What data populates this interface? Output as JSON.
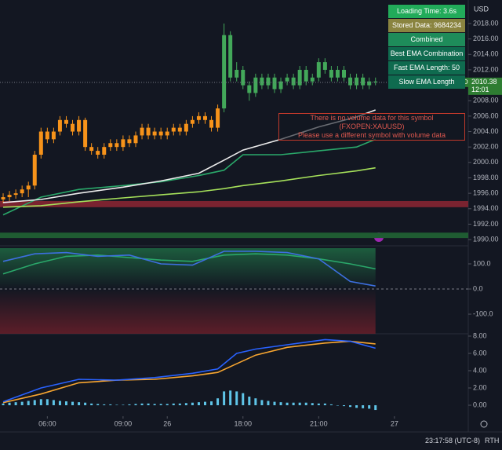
{
  "chart_data": [
    {
      "type": "candlestick",
      "currency": "USD",
      "symbol": "XAUUSD",
      "last_price": 2010.38,
      "countdown": "12:01",
      "xlim": [
        -0.5,
        73.7
      ],
      "ylim": [
        1989.5,
        2021.05
      ],
      "yticks": [
        {
          "value": 2018,
          "label": "2018.00"
        },
        {
          "value": 2016,
          "label": "2016.00"
        },
        {
          "value": 2014,
          "label": "2014.00"
        },
        {
          "value": 2012,
          "label": "2012.00"
        },
        {
          "value": 2010,
          "label": "2010.00"
        },
        {
          "value": 2008,
          "label": "2008.00"
        },
        {
          "value": 2006,
          "label": "2006.00"
        },
        {
          "value": 2004,
          "label": "2004.00"
        },
        {
          "value": 2002,
          "label": "2002.00"
        },
        {
          "value": 2000,
          "label": "2000.00"
        },
        {
          "value": 1998,
          "label": "1998.00"
        },
        {
          "value": 1996,
          "label": "1996.00"
        },
        {
          "value": 1994,
          "label": "1994.00"
        },
        {
          "value": 1992,
          "label": "1992.00"
        },
        {
          "value": 1990,
          "label": "1990.00"
        }
      ],
      "zones": [
        {
          "from": 1994.2,
          "to": 1995,
          "color": "#7a2330"
        },
        {
          "from": 1990.2,
          "to": 1990.9,
          "color": "#1f5c32"
        }
      ],
      "series": [
        {
          "type": "candlestick",
          "color": "#f7931a",
          "x": [
            0,
            1,
            2,
            3,
            4,
            5,
            6,
            7,
            8,
            9,
            10,
            11,
            12,
            13,
            14,
            15,
            16,
            17,
            18,
            19,
            20,
            21,
            22,
            23,
            24,
            25,
            26,
            27,
            28,
            29,
            30,
            31,
            32,
            33,
            34
          ],
          "open": [
            1995.2,
            1995.5,
            1995.8,
            1996,
            1996.5,
            1997,
            2001,
            2004,
            2003,
            2004,
            2005.5,
            2005,
            2004,
            2005.5,
            2002,
            2001.5,
            2001,
            2002,
            2002.5,
            2002,
            2003,
            2002.5,
            2003.5,
            2004.5,
            2003.5,
            2004,
            2003.5,
            2004,
            2004.5,
            2004,
            2005,
            2005.5,
            2006,
            2005.5,
            2004.5
          ],
          "high": [
            1996,
            1996.3,
            1996.5,
            1997,
            1997.5,
            2001.5,
            2004.5,
            2004.5,
            2004.5,
            2006,
            2006,
            2005.5,
            2006,
            2005.8,
            2002.5,
            2002,
            2002.5,
            2003,
            2003,
            2003.5,
            2003.5,
            2004,
            2005,
            2005,
            2004.5,
            2004.5,
            2004.5,
            2005,
            2005,
            2005.5,
            2006,
            2006.5,
            2006.5,
            2006,
            2007.5
          ],
          "low": [
            1994.7,
            1995,
            1995.3,
            1995.5,
            1995.5,
            1996.5,
            2000.5,
            2002.5,
            2002.5,
            2003.5,
            2004.5,
            2003.5,
            2003.5,
            2001.5,
            2001,
            2000.5,
            2000.5,
            2001.5,
            2001.5,
            2001.5,
            2002,
            2002,
            2003,
            2003,
            2003,
            2003,
            2003,
            2003.5,
            2003.5,
            2003.5,
            2004.5,
            2005,
            2005,
            2004,
            2004
          ],
          "close": [
            1995.5,
            1995.8,
            1996,
            1996.5,
            1997,
            2001,
            2004,
            2003,
            2004,
            2005.5,
            2005,
            2004,
            2005.5,
            2002,
            2001.5,
            2001,
            2002,
            2002.5,
            2002,
            2003,
            2002.5,
            2003.5,
            2004.5,
            2003.5,
            2004,
            2003.5,
            2004,
            2004.5,
            2004,
            2005,
            2005.5,
            2006,
            2005.5,
            2004.5,
            2007
          ]
        },
        {
          "type": "candlestick",
          "color": "#43a85a",
          "x": [
            35,
            36,
            37,
            38,
            39,
            40,
            41,
            42,
            43,
            44,
            45,
            46,
            47,
            48,
            49,
            50,
            51,
            52,
            53,
            54,
            55,
            56,
            57,
            58,
            59
          ],
          "open": [
            2007,
            2016.5,
            2011,
            2012,
            2010,
            2009,
            2011,
            2010,
            2011,
            2009.5,
            2010.5,
            2011,
            2010,
            2012,
            2010.5,
            2011,
            2013,
            2012,
            2011,
            2012,
            2011,
            2010,
            2011,
            2010,
            2010.5
          ],
          "high": [
            2018,
            2017,
            2013,
            2012.5,
            2010.5,
            2011.5,
            2011.5,
            2011.5,
            2011.5,
            2011,
            2011.5,
            2011.5,
            2012.5,
            2012.5,
            2011.5,
            2013.5,
            2013.5,
            2012.5,
            2012.5,
            2012.5,
            2011.5,
            2011.5,
            2011.5,
            2011,
            2011
          ],
          "low": [
            2006.5,
            2010.5,
            2010.5,
            2009.5,
            2008,
            2008.5,
            2009.5,
            2009.5,
            2009,
            2009,
            2010,
            2009.5,
            2009.5,
            2010,
            2010,
            2010.5,
            2011.5,
            2010.5,
            2010.5,
            2010.5,
            2009.5,
            2009.5,
            2009.5,
            2009.5,
            2010
          ],
          "close": [
            2016.5,
            2011,
            2012,
            2010,
            2009,
            2011,
            2010,
            2011,
            2009.5,
            2010.5,
            2011,
            2010,
            2012,
            2010.5,
            2011,
            2013,
            2012,
            2011,
            2012,
            2011,
            2010,
            2011,
            2010,
            2010.5,
            2010.4
          ]
        },
        {
          "type": "line",
          "color": "#2aa86a",
          "x": [
            0,
            6,
            12,
            19,
            25,
            31,
            35,
            38,
            44,
            50,
            56,
            59
          ],
          "values": [
            1993.2,
            1995.5,
            1996.5,
            1997,
            1997.5,
            1998.3,
            1999,
            2001,
            2001,
            2001.5,
            2002,
            2003
          ]
        },
        {
          "type": "line",
          "color": "#a5e05a",
          "x": [
            0,
            6,
            12,
            19,
            25,
            31,
            35,
            38,
            44,
            50,
            56,
            59
          ],
          "values": [
            1994.2,
            1994.4,
            1994.9,
            1995.4,
            1995.8,
            1996.2,
            1996.6,
            1997,
            1997.6,
            1998.3,
            1998.9,
            1999.3
          ]
        },
        {
          "type": "line",
          "color": "#ececec",
          "x": [
            0,
            6,
            12,
            19,
            25,
            31,
            35,
            38,
            44,
            50,
            56,
            59
          ],
          "values": [
            1994.8,
            1995.2,
            1996,
            1996.8,
            1997.6,
            1998.6,
            2000.3,
            2001.6,
            2003,
            2004.6,
            2005.9,
            2006.8
          ]
        }
      ]
    },
    {
      "type": "line",
      "xlim": [
        -0.5,
        73.7
      ],
      "ylim": [
        -178,
        162.5
      ],
      "yticks": [
        {
          "value": 100,
          "label": "100.0"
        },
        {
          "value": 0,
          "label": "0.0"
        },
        {
          "value": -100,
          "label": "-100.0"
        }
      ],
      "series": [
        {
          "type": "line",
          "color": "#2aa86a",
          "x": [
            0,
            5,
            10,
            15,
            20,
            25,
            30,
            35,
            40,
            45,
            50,
            55,
            59
          ],
          "values": [
            60,
            100,
            130,
            135,
            125,
            115,
            110,
            135,
            140,
            135,
            120,
            100,
            80
          ]
        },
        {
          "type": "line",
          "color": "#3d6fe0",
          "x": [
            0,
            5,
            10,
            15,
            20,
            25,
            30,
            35,
            40,
            45,
            50,
            55,
            59
          ],
          "values": [
            110,
            140,
            145,
            130,
            135,
            100,
            95,
            150,
            150,
            145,
            120,
            30,
            12
          ]
        }
      ]
    },
    {
      "type": "line",
      "xlim": [
        -0.5,
        73.7
      ],
      "ylim": [
        -1.09,
        8.18
      ],
      "yticks": [
        {
          "value": 8,
          "label": "8.00"
        },
        {
          "value": 6,
          "label": "6.00"
        },
        {
          "value": 4,
          "label": "4.00"
        },
        {
          "value": 2,
          "label": "2.00"
        },
        {
          "value": 0,
          "label": "0.00"
        }
      ],
      "xticks": [
        {
          "value": 7,
          "label": "06:00"
        },
        {
          "value": 19,
          "label": "09:00"
        },
        26,
        {
          "value": 38,
          "label": "18:00"
        },
        {
          "value": 50,
          "label": "21:00"
        },
        {
          "value": 62,
          "label": "27"
        }
      ],
      "series": [
        {
          "type": "bar",
          "color": "#5fc5e8",
          "values": [
            0.2,
            0.3,
            0.35,
            0.4,
            0.5,
            0.6,
            0.7,
            0.7,
            0.6,
            0.5,
            0.45,
            0.4,
            0.35,
            0.3,
            0.2,
            0.15,
            0.1,
            0.1,
            0.05,
            0.05,
            0.1,
            0.15,
            0.2,
            0.2,
            0.15,
            0.15,
            0.15,
            0.2,
            0.2,
            0.25,
            0.3,
            0.35,
            0.4,
            0.45,
            0.8,
            1.6,
            1.7,
            1.6,
            1.4,
            1.0,
            0.8,
            0.6,
            0.5,
            0.4,
            0.35,
            0.3,
            0.3,
            0.3,
            0.3,
            0.25,
            0.2,
            0.2,
            0.1,
            0,
            -0.1,
            -0.2,
            -0.3,
            -0.35,
            -0.4,
            -0.55
          ]
        },
        {
          "type": "line",
          "color": "#f7a530",
          "x": [
            0,
            6,
            12,
            18,
            24,
            30,
            34,
            37,
            40,
            45,
            51,
            55,
            59
          ],
          "values": [
            0.3,
            1.3,
            2.6,
            2.9,
            3.0,
            3.4,
            3.8,
            4.8,
            5.8,
            6.7,
            7.2,
            7.4,
            7.1
          ]
        },
        {
          "type": "line",
          "color": "#2962ff",
          "x": [
            0,
            6,
            12,
            18,
            24,
            30,
            34,
            37,
            40,
            45,
            51,
            55,
            59
          ],
          "values": [
            0.4,
            2.0,
            3.0,
            2.9,
            3.2,
            3.7,
            4.2,
            6.0,
            6.5,
            7.0,
            7.6,
            7.4,
            6.6
          ]
        }
      ]
    }
  ],
  "overlay": [
    "Loading Time: 3.6s",
    "Stored Data: 9684234",
    "Combined",
    "Best EMA Combination",
    "Fast EMA Length: 50",
    "Slow EMA Length"
  ],
  "warning": [
    "There is no volume data for this symbol (FXOPEN:XAUUSD)",
    "Please use a different symbol with volume data"
  ],
  "footer": {
    "clock": "23:17:58 (UTC-8)",
    "session": "RTH"
  }
}
